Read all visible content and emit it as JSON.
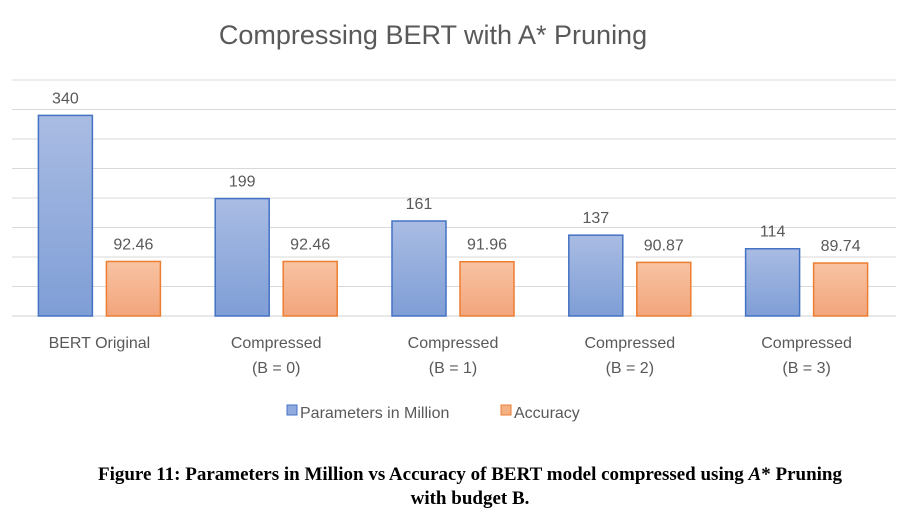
{
  "chart_data": {
    "type": "bar",
    "title": "Compressing BERT with A* Pruning",
    "categories": [
      [
        "BERT Original"
      ],
      [
        "Compressed",
        "(B = 0)"
      ],
      [
        "Compressed",
        "(B = 1)"
      ],
      [
        "Compressed",
        "(B = 2)"
      ],
      [
        "Compressed",
        "(B = 3)"
      ]
    ],
    "series": [
      {
        "name": "Parameters in Million",
        "values": [
          340,
          199,
          161,
          137,
          114
        ],
        "labels": [
          "340",
          "199",
          "161",
          "137",
          "114"
        ],
        "color": "#8FAADC",
        "stroke": "#4472C4"
      },
      {
        "name": "Accuracy",
        "values": [
          92.46,
          92.46,
          91.96,
          90.87,
          89.74
        ],
        "labels": [
          "92.46",
          "92.46",
          "91.96",
          "90.87",
          "89.74"
        ],
        "color": "#F4B183",
        "stroke": "#ED7D31"
      }
    ],
    "ylim": [
      0,
      400
    ],
    "grid": true,
    "legend": "bottom"
  },
  "caption": {
    "prefix": "Figure 11: Parameters in Million vs Accuracy of BERT model compressed using ",
    "italic": "A",
    "middle": "* Pruning",
    "line2": "with budget B."
  }
}
